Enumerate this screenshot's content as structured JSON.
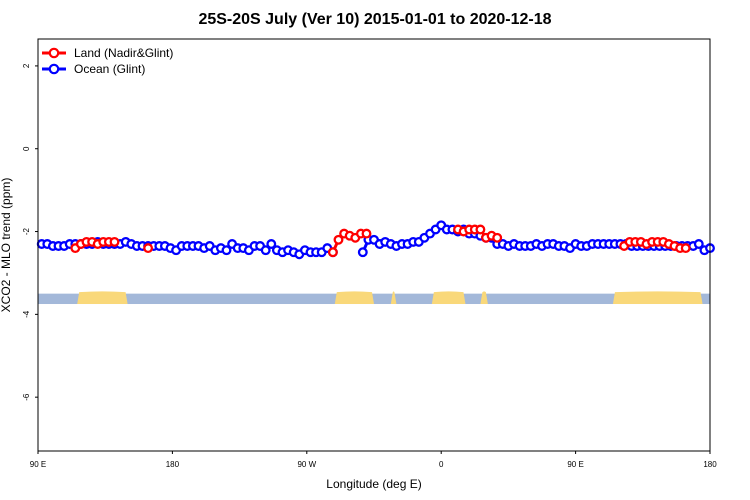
{
  "chart_data": {
    "type": "line",
    "title": "25S-20S July (Ver 10)   2015-01-01 to 2020-12-18",
    "xlabel": "Longitude (deg E)",
    "ylabel": "XCO2 - MLO trend (ppm)",
    "xlim": [
      90,
      450
    ],
    "ylim": [
      -7.3,
      2.65
    ],
    "x_ticks": [
      {
        "value": 90,
        "label": "90 E"
      },
      {
        "value": 162,
        "label": "180"
      },
      {
        "value": 234,
        "label": "90 W"
      },
      {
        "value": 306,
        "label": "0"
      },
      {
        "value": 378,
        "label": "90 E"
      },
      {
        "value": 450,
        "label": "180"
      }
    ],
    "y_ticks": [
      {
        "value": 2,
        "label": "2"
      },
      {
        "value": 0,
        "label": "0"
      },
      {
        "value": -2,
        "label": "-2"
      },
      {
        "value": -4,
        "label": "-4"
      },
      {
        "value": -6,
        "label": "-6"
      }
    ],
    "legend": [
      {
        "name": "Land (Nadir&Glint)",
        "color": "#ff0000"
      },
      {
        "name": "Ocean (Glint)",
        "color": "#0000ff"
      }
    ],
    "land_strip": {
      "y_top": -3.5,
      "y_bottom": -3.75,
      "ocean_color": "#a3b8d9",
      "land_color": "#f9d87a",
      "land_segments": [
        [
          111,
          138
        ],
        [
          249,
          270
        ],
        [
          279,
          282
        ],
        [
          301,
          319
        ],
        [
          327,
          331
        ],
        [
          398,
          446
        ]
      ]
    },
    "series": [
      {
        "name": "Land (Nadir&Glint)",
        "color": "#ff0000",
        "x": [
          110,
          113,
          116,
          119,
          122,
          125,
          128,
          131,
          149,
          248,
          251,
          254,
          257,
          260,
          263,
          266,
          315,
          318,
          321,
          324,
          327,
          330,
          333,
          336,
          404,
          407,
          410,
          413,
          416,
          419,
          422,
          425,
          428,
          431,
          434,
          437
        ],
        "y": [
          -2.4,
          -2.3,
          -2.25,
          -2.25,
          -2.3,
          -2.25,
          -2.25,
          -2.25,
          -2.4,
          -2.5,
          -2.2,
          -2.05,
          -2.1,
          -2.15,
          -2.05,
          -2.05,
          -1.95,
          -2.0,
          -1.95,
          -1.95,
          -1.95,
          -2.15,
          -2.1,
          -2.15,
          -2.35,
          -2.25,
          -2.25,
          -2.25,
          -2.3,
          -2.25,
          -2.25,
          -2.25,
          -2.3,
          -2.35,
          -2.4,
          -2.4
        ]
      },
      {
        "name": "Ocean (Glint)",
        "color": "#0000ff",
        "x": [
          92,
          95,
          98,
          101,
          104,
          107,
          110,
          113,
          116,
          119,
          122,
          125,
          128,
          131,
          134,
          137,
          140,
          143,
          146,
          149,
          152,
          155,
          158,
          161,
          164,
          167,
          170,
          173,
          176,
          179,
          182,
          185,
          188,
          191,
          194,
          197,
          200,
          203,
          206,
          209,
          212,
          215,
          218,
          221,
          224,
          227,
          230,
          233,
          236,
          239,
          242,
          245,
          248,
          264,
          267,
          270,
          273,
          276,
          279,
          282,
          285,
          288,
          291,
          294,
          297,
          300,
          303,
          306,
          309,
          312,
          315,
          318,
          321,
          324,
          327,
          330,
          333,
          336,
          339,
          342,
          345,
          348,
          351,
          354,
          357,
          360,
          363,
          366,
          369,
          372,
          375,
          378,
          381,
          384,
          387,
          390,
          393,
          396,
          399,
          402,
          405,
          408,
          411,
          414,
          417,
          420,
          423,
          426,
          429,
          432,
          435,
          438,
          441,
          444,
          447,
          450
        ],
        "y": [
          -2.3,
          -2.3,
          -2.35,
          -2.35,
          -2.35,
          -2.3,
          -2.3,
          -2.3,
          -2.3,
          -2.3,
          -2.25,
          -2.3,
          -2.3,
          -2.3,
          -2.3,
          -2.25,
          -2.3,
          -2.35,
          -2.35,
          -2.35,
          -2.35,
          -2.35,
          -2.35,
          -2.4,
          -2.45,
          -2.35,
          -2.35,
          -2.35,
          -2.35,
          -2.4,
          -2.35,
          -2.45,
          -2.4,
          -2.45,
          -2.3,
          -2.4,
          -2.4,
          -2.45,
          -2.35,
          -2.35,
          -2.45,
          -2.3,
          -2.45,
          -2.5,
          -2.45,
          -2.5,
          -2.55,
          -2.45,
          -2.5,
          -2.5,
          -2.5,
          -2.4,
          -2.5,
          -2.5,
          -2.2,
          -2.2,
          -2.3,
          -2.25,
          -2.3,
          -2.35,
          -2.3,
          -2.3,
          -2.25,
          -2.25,
          -2.15,
          -2.05,
          -1.95,
          -1.85,
          -1.95,
          -1.95,
          -2.0,
          -1.95,
          -2.05,
          -2.05,
          -2.1,
          -2.15,
          -2.15,
          -2.3,
          -2.3,
          -2.35,
          -2.3,
          -2.35,
          -2.35,
          -2.35,
          -2.3,
          -2.35,
          -2.3,
          -2.3,
          -2.35,
          -2.35,
          -2.4,
          -2.3,
          -2.35,
          -2.35,
          -2.3,
          -2.3,
          -2.3,
          -2.3,
          -2.3,
          -2.3,
          -2.3,
          -2.35,
          -2.35,
          -2.35,
          -2.35,
          -2.35,
          -2.35,
          -2.35,
          -2.35,
          -2.35,
          -2.35,
          -2.35,
          -2.35,
          -2.3,
          -2.45,
          -2.4
        ]
      }
    ]
  }
}
